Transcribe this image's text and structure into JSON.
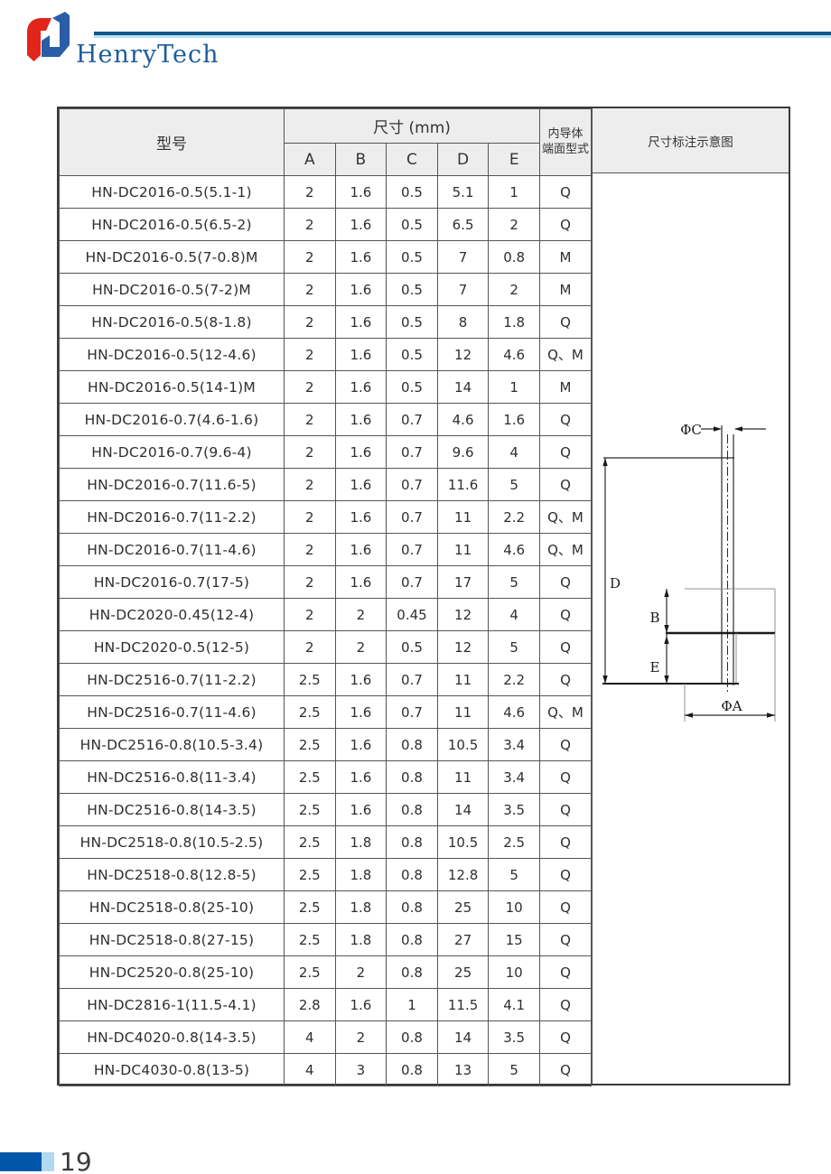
{
  "brand": {
    "name": "HenryTech"
  },
  "page": {
    "number": "19"
  },
  "colors": {
    "brand_blue": "#1d5c9d",
    "brand_red": "#e1251b",
    "rule_dark_blue": "#14568c",
    "rule_light_blue": "#b5e2f8",
    "footer_dark_blue": "#0057a9",
    "footer_light_blue": "#b0d9f2",
    "header_fill": "#ededed",
    "table_border": "#555555"
  },
  "table": {
    "headers": {
      "model": "型号",
      "size_group": "尺寸 (mm)",
      "cols": [
        "A",
        "B",
        "C",
        "D",
        "E"
      ],
      "conductor_line1": "内导体",
      "conductor_line2": "端面型式",
      "diagram": "尺寸标注示意图"
    },
    "rows": [
      {
        "model": "HN-DC2016-0.5(5.1-1)",
        "a": "2",
        "b": "1.6",
        "c": "0.5",
        "d": "5.1",
        "e": "1",
        "type": "Q"
      },
      {
        "model": "HN-DC2016-0.5(6.5-2)",
        "a": "2",
        "b": "1.6",
        "c": "0.5",
        "d": "6.5",
        "e": "2",
        "type": "Q"
      },
      {
        "model": "HN-DC2016-0.5(7-0.8)M",
        "a": "2",
        "b": "1.6",
        "c": "0.5",
        "d": "7",
        "e": "0.8",
        "type": "M"
      },
      {
        "model": "HN-DC2016-0.5(7-2)M",
        "a": "2",
        "b": "1.6",
        "c": "0.5",
        "d": "7",
        "e": "2",
        "type": "M"
      },
      {
        "model": "HN-DC2016-0.5(8-1.8)",
        "a": "2",
        "b": "1.6",
        "c": "0.5",
        "d": "8",
        "e": "1.8",
        "type": "Q"
      },
      {
        "model": "HN-DC2016-0.5(12-4.6)",
        "a": "2",
        "b": "1.6",
        "c": "0.5",
        "d": "12",
        "e": "4.6",
        "type": "Q、M"
      },
      {
        "model": "HN-DC2016-0.5(14-1)M",
        "a": "2",
        "b": "1.6",
        "c": "0.5",
        "d": "14",
        "e": "1",
        "type": "M"
      },
      {
        "model": "HN-DC2016-0.7(4.6-1.6)",
        "a": "2",
        "b": "1.6",
        "c": "0.7",
        "d": "4.6",
        "e": "1.6",
        "type": "Q"
      },
      {
        "model": "HN-DC2016-0.7(9.6-4)",
        "a": "2",
        "b": "1.6",
        "c": "0.7",
        "d": "9.6",
        "e": "4",
        "type": "Q"
      },
      {
        "model": "HN-DC2016-0.7(11.6-5)",
        "a": "2",
        "b": "1.6",
        "c": "0.7",
        "d": "11.6",
        "e": "5",
        "type": "Q"
      },
      {
        "model": "HN-DC2016-0.7(11-2.2)",
        "a": "2",
        "b": "1.6",
        "c": "0.7",
        "d": "11",
        "e": "2.2",
        "type": "Q、M"
      },
      {
        "model": "HN-DC2016-0.7(11-4.6)",
        "a": "2",
        "b": "1.6",
        "c": "0.7",
        "d": "11",
        "e": "4.6",
        "type": "Q、M"
      },
      {
        "model": "HN-DC2016-0.7(17-5)",
        "a": "2",
        "b": "1.6",
        "c": "0.7",
        "d": "17",
        "e": "5",
        "type": "Q"
      },
      {
        "model": "HN-DC2020-0.45(12-4)",
        "a": "2",
        "b": "2",
        "c": "0.45",
        "d": "12",
        "e": "4",
        "type": "Q"
      },
      {
        "model": "HN-DC2020-0.5(12-5)",
        "a": "2",
        "b": "2",
        "c": "0.5",
        "d": "12",
        "e": "5",
        "type": "Q"
      },
      {
        "model": "HN-DC2516-0.7(11-2.2)",
        "a": "2.5",
        "b": "1.6",
        "c": "0.7",
        "d": "11",
        "e": "2.2",
        "type": "Q"
      },
      {
        "model": "HN-DC2516-0.7(11-4.6)",
        "a": "2.5",
        "b": "1.6",
        "c": "0.7",
        "d": "11",
        "e": "4.6",
        "type": "Q、M"
      },
      {
        "model": "HN-DC2516-0.8(10.5-3.4)",
        "a": "2.5",
        "b": "1.6",
        "c": "0.8",
        "d": "10.5",
        "e": "3.4",
        "type": "Q"
      },
      {
        "model": "HN-DC2516-0.8(11-3.4)",
        "a": "2.5",
        "b": "1.6",
        "c": "0.8",
        "d": "11",
        "e": "3.4",
        "type": "Q"
      },
      {
        "model": "HN-DC2516-0.8(14-3.5)",
        "a": "2.5",
        "b": "1.6",
        "c": "0.8",
        "d": "14",
        "e": "3.5",
        "type": "Q"
      },
      {
        "model": "HN-DC2518-0.8(10.5-2.5)",
        "a": "2.5",
        "b": "1.8",
        "c": "0.8",
        "d": "10.5",
        "e": "2.5",
        "type": "Q"
      },
      {
        "model": "HN-DC2518-0.8(12.8-5)",
        "a": "2.5",
        "b": "1.8",
        "c": "0.8",
        "d": "12.8",
        "e": "5",
        "type": "Q"
      },
      {
        "model": "HN-DC2518-0.8(25-10)",
        "a": "2.5",
        "b": "1.8",
        "c": "0.8",
        "d": "25",
        "e": "10",
        "type": "Q"
      },
      {
        "model": "HN-DC2518-0.8(27-15)",
        "a": "2.5",
        "b": "1.8",
        "c": "0.8",
        "d": "27",
        "e": "15",
        "type": "Q"
      },
      {
        "model": "HN-DC2520-0.8(25-10)",
        "a": "2.5",
        "b": "2",
        "c": "0.8",
        "d": "25",
        "e": "10",
        "type": "Q"
      },
      {
        "model": "HN-DC2816-1(11.5-4.1)",
        "a": "2.8",
        "b": "1.6",
        "c": "1",
        "d": "11.5",
        "e": "4.1",
        "type": "Q"
      },
      {
        "model": "HN-DC4020-0.8(14-3.5)",
        "a": "4",
        "b": "2",
        "c": "0.8",
        "d": "14",
        "e": "3.5",
        "type": "Q"
      },
      {
        "model": "HN-DC4030-0.8(13-5)",
        "a": "4",
        "b": "3",
        "c": "0.8",
        "d": "13",
        "e": "5",
        "type": "Q"
      }
    ]
  },
  "diagram": {
    "labels": {
      "phi_c": "ΦC",
      "d": "D",
      "b": "B",
      "e": "E",
      "phi_a": "ΦA"
    }
  }
}
